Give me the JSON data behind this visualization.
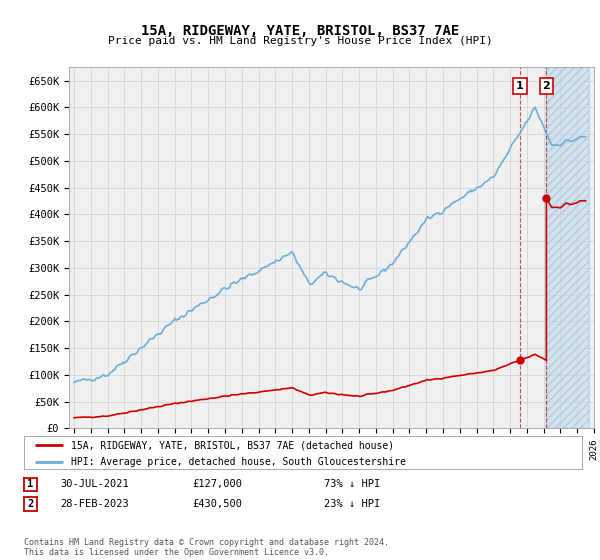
{
  "title": "15A, RIDGEWAY, YATE, BRISTOL, BS37 7AE",
  "subtitle": "Price paid vs. HM Land Registry's House Price Index (HPI)",
  "ylim": [
    0,
    675000
  ],
  "yticks": [
    0,
    50000,
    100000,
    150000,
    200000,
    250000,
    300000,
    350000,
    400000,
    450000,
    500000,
    550000,
    600000,
    650000
  ],
  "ytick_labels": [
    "£0",
    "£50K",
    "£100K",
    "£150K",
    "£200K",
    "£250K",
    "£300K",
    "£350K",
    "£400K",
    "£450K",
    "£500K",
    "£550K",
    "£600K",
    "£650K"
  ],
  "hpi_color": "#6baed6",
  "price_color": "#cc0000",
  "sale1_year": 2021.58,
  "sale1_price": 127000,
  "sale2_year": 2023.16,
  "sale2_price": 430500,
  "legend1": "15A, RIDGEWAY, YATE, BRISTOL, BS37 7AE (detached house)",
  "legend2": "HPI: Average price, detached house, South Gloucestershire",
  "footer": "Contains HM Land Registry data © Crown copyright and database right 2024.\nThis data is licensed under the Open Government Licence v3.0.",
  "background_color": "#ffffff",
  "plot_bg_color": "#f0f0f0",
  "grid_color": "#d0d0d0"
}
